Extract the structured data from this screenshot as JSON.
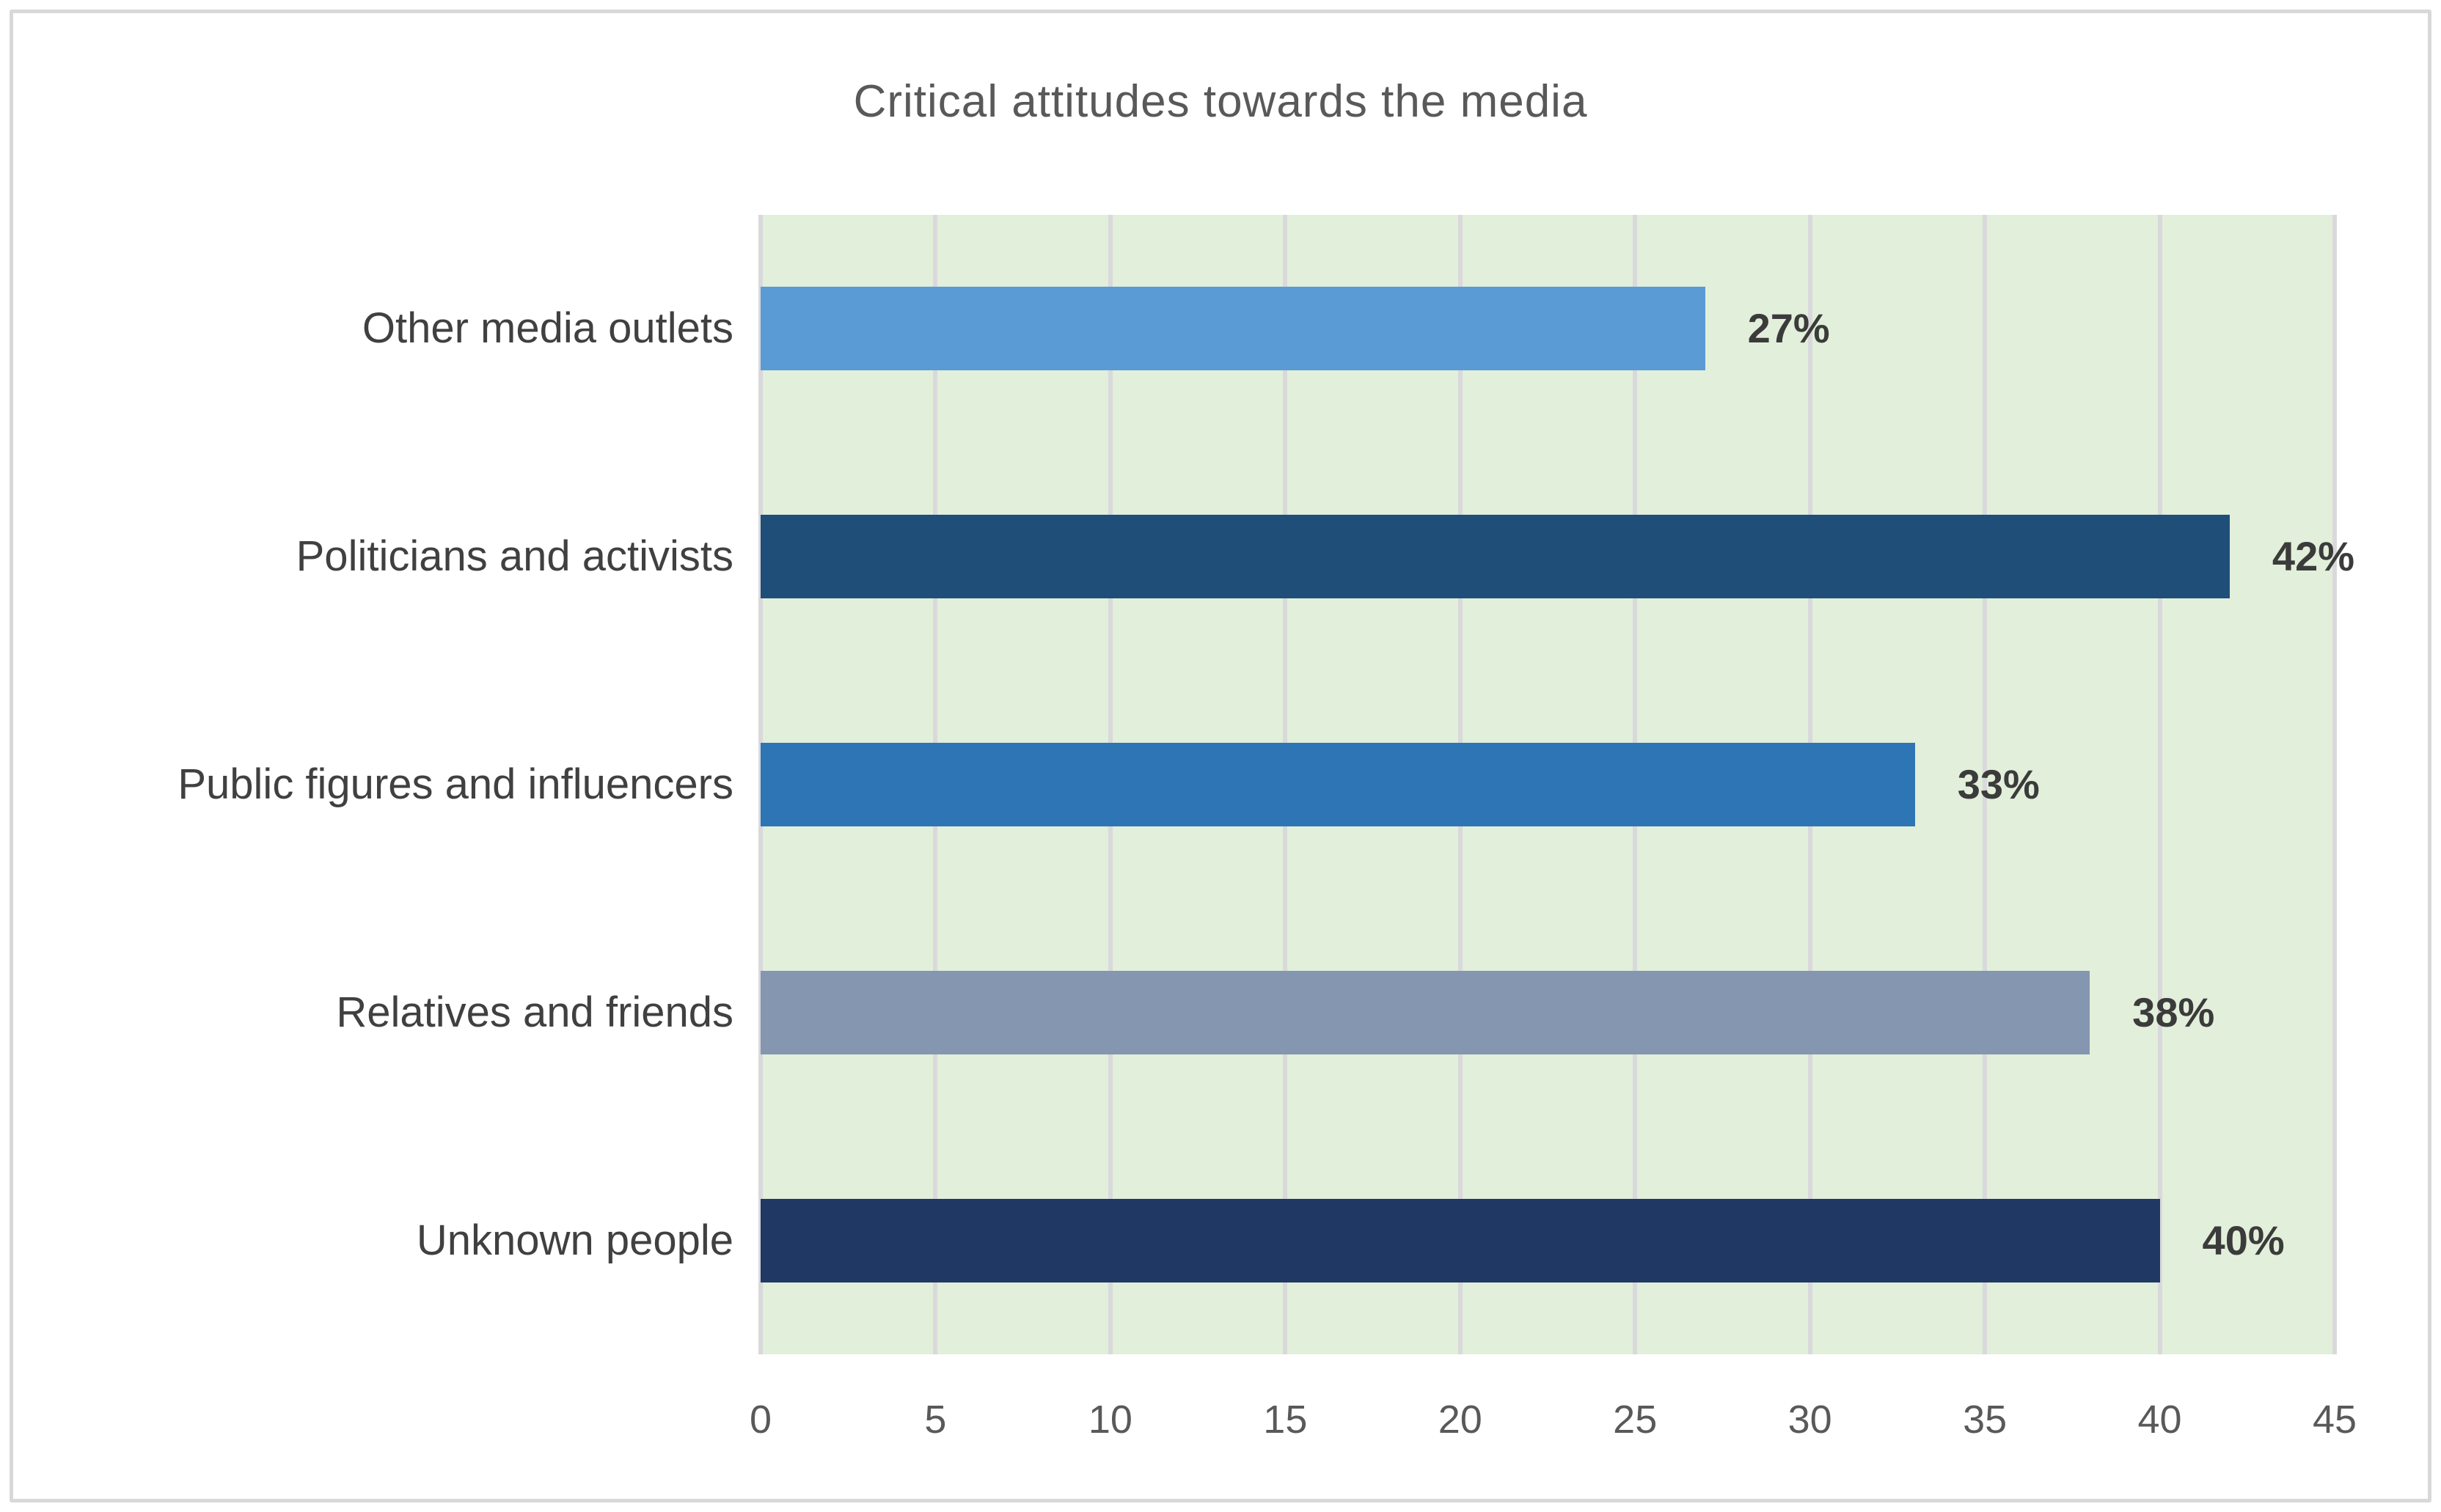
{
  "chart_data": {
    "type": "bar",
    "orientation": "horizontal",
    "title": "Critical attitudes towards the media",
    "categories": [
      "Other media outlets",
      "Politicians and activists",
      "Public figures and influencers",
      "Relatives and friends",
      "Unknown people"
    ],
    "values": [
      27,
      42,
      33,
      38,
      40
    ],
    "value_labels": [
      "27%",
      "42%",
      "33%",
      "38%",
      "40%"
    ],
    "bar_colors": [
      "#5B9BD5",
      "#1F4E79",
      "#2E75B6",
      "#8496B0",
      "#1F3864"
    ],
    "xlabel": "",
    "ylabel": "",
    "xlim": [
      0,
      45
    ],
    "x_ticks": [
      0,
      5,
      10,
      15,
      20,
      25,
      30,
      35,
      40,
      45
    ],
    "grid": "vertical-gridlines-on",
    "legend": "none",
    "colors": {
      "plot_background": "#E2EFDA",
      "page_background": "#FFFFFF",
      "gridline": "#D9D9DC",
      "frame_border": "#D8D8D8",
      "title_text": "#595959",
      "category_text": "#404040",
      "tick_text": "#595959",
      "value_label_text": "#3B3B3B"
    }
  }
}
